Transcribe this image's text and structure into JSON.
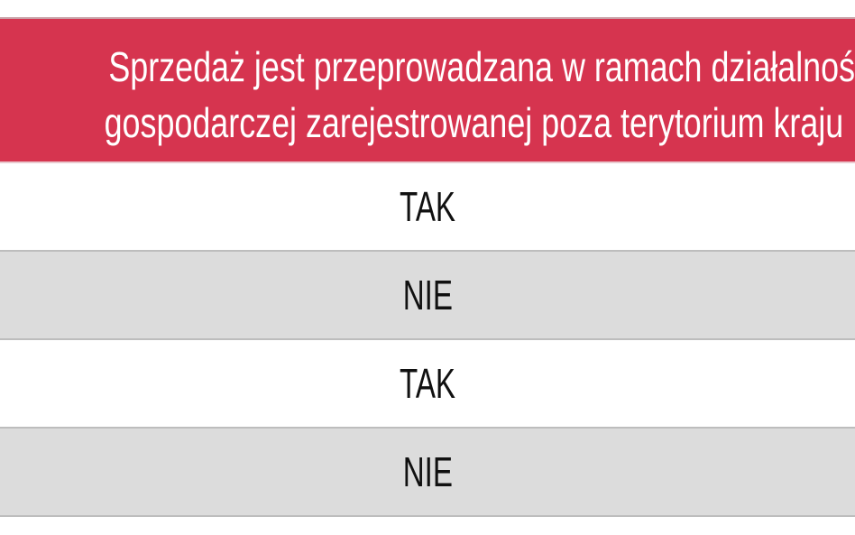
{
  "header": {
    "line1": "Sprzedaż jest przeprowadzana w ramach działalności",
    "line2": "gospodarczej zarejestrowanej poza terytorium kraju"
  },
  "rows": [
    "TAK",
    "NIE",
    "TAK",
    "NIE"
  ],
  "colors": {
    "header_bg": "#d6344f",
    "alt_row": "#dcdcdc"
  }
}
